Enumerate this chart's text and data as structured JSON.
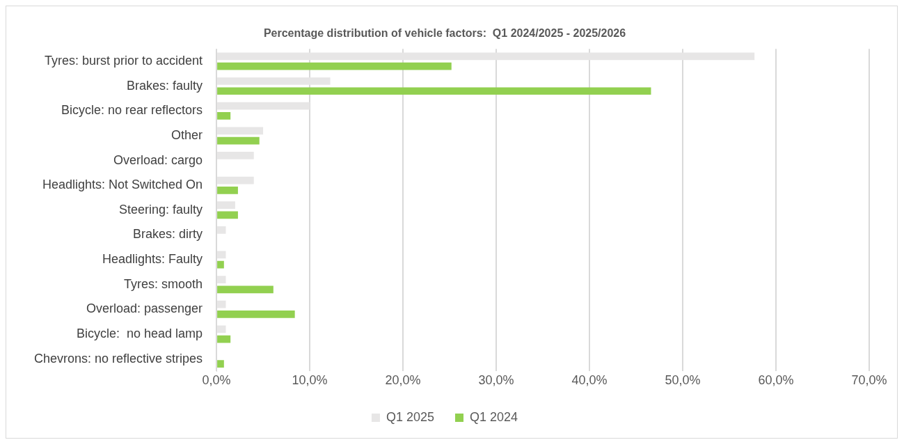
{
  "chart_data": {
    "type": "bar",
    "orientation": "horizontal",
    "title": "Percentage distribution of vehicle factors:  Q1 2024/2025 - 2025/2026",
    "categories": [
      "Tyres: burst prior to accident",
      "Brakes: faulty",
      "Bicycle: no rear reflectors",
      "Other",
      "Overload: cargo",
      "Headlights: Not Switched On",
      "Steering: faulty",
      "Brakes: dirty",
      "Headlights: Faulty",
      "Tyres: smooth",
      "Overload: passenger",
      "Bicycle:  no head lamp",
      "Chevrons: no reflective stripes"
    ],
    "series": [
      {
        "name": "Q1 2025",
        "color": "#e7e6e6",
        "values": [
          57.7,
          12.2,
          10.0,
          5.0,
          4.0,
          4.0,
          2.0,
          1.0,
          1.0,
          1.0,
          1.0,
          1.0,
          null
        ]
      },
      {
        "name": "Q1 2024",
        "color": "#92d050",
        "values": [
          25.2,
          46.6,
          1.5,
          4.6,
          null,
          2.3,
          2.3,
          null,
          0.8,
          6.1,
          8.4,
          1.5,
          0.8
        ]
      }
    ],
    "xlim": [
      0,
      70
    ],
    "xticks": [
      {
        "value": 0,
        "label": "0,0%"
      },
      {
        "value": 10,
        "label": "10,0%"
      },
      {
        "value": 20,
        "label": "20,0%"
      },
      {
        "value": 30,
        "label": "30,0%"
      },
      {
        "value": 40,
        "label": "40,0%"
      },
      {
        "value": 50,
        "label": "50,0%"
      },
      {
        "value": 60,
        "label": "60,0%"
      },
      {
        "value": 70,
        "label": "70,0%"
      }
    ],
    "grid": "x",
    "legend": "bottom"
  }
}
